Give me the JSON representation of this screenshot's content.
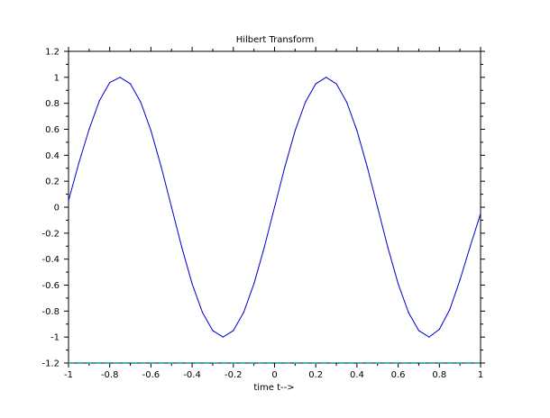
{
  "chart_data": {
    "type": "line",
    "title": "Hilbert Transform",
    "xlabel": "time t-->",
    "ylabel": "",
    "xlim": [
      -1,
      1
    ],
    "ylim": [
      -1.2,
      1.2
    ],
    "grid": false,
    "x_ticks": [
      -1,
      -0.8,
      -0.6,
      -0.4,
      -0.2,
      0,
      0.2,
      0.4,
      0.6,
      0.8,
      1
    ],
    "x_tick_labels": [
      "-1",
      "-0.8",
      "-0.6",
      "-0.4",
      "-0.2",
      "0",
      "0.2",
      "0.4",
      "0.6",
      "0.8",
      "1"
    ],
    "y_ticks": [
      -1.2,
      -1,
      -0.8,
      -0.6,
      -0.4,
      -0.2,
      0,
      0.2,
      0.4,
      0.6,
      0.8,
      1,
      1.2
    ],
    "y_tick_labels": [
      "-1.2",
      "-1",
      "-0.8",
      "-0.6",
      "-0.4",
      "-0.2",
      "0",
      "0.2",
      "0.4",
      "0.6",
      "0.8",
      "1",
      "1.2"
    ],
    "series": [
      {
        "color": "#0000cc",
        "x": [
          -1,
          -0.95,
          -0.9,
          -0.85,
          -0.8,
          -0.75,
          -0.7,
          -0.65,
          -0.6,
          -0.55,
          -0.5,
          -0.45,
          -0.4,
          -0.35,
          -0.3,
          -0.25,
          -0.2,
          -0.15,
          -0.1,
          -0.05,
          0,
          0.05,
          0.1,
          0.15,
          0.2,
          0.25,
          0.3,
          0.35,
          0.4,
          0.45,
          0.5,
          0.55,
          0.6,
          0.65,
          0.7,
          0.75,
          0.8,
          0.85,
          0.9,
          0.95,
          1
        ],
        "values": [
          0.05,
          0.34,
          0.6,
          0.82,
          0.96,
          1.0,
          0.95,
          0.81,
          0.59,
          0.31,
          0.0,
          -0.31,
          -0.59,
          -0.81,
          -0.95,
          -1.0,
          -0.95,
          -0.81,
          -0.59,
          -0.31,
          0.0,
          0.31,
          0.59,
          0.81,
          0.95,
          1.0,
          0.95,
          0.81,
          0.59,
          0.31,
          0.0,
          -0.31,
          -0.59,
          -0.81,
          -0.95,
          -1.0,
          -0.94,
          -0.79,
          -0.56,
          -0.3,
          -0.05
        ]
      },
      {
        "color": "#00a0a0",
        "style": "dashed",
        "x": [
          -1,
          1
        ],
        "values": [
          -1.2,
          -1.2
        ]
      }
    ]
  }
}
